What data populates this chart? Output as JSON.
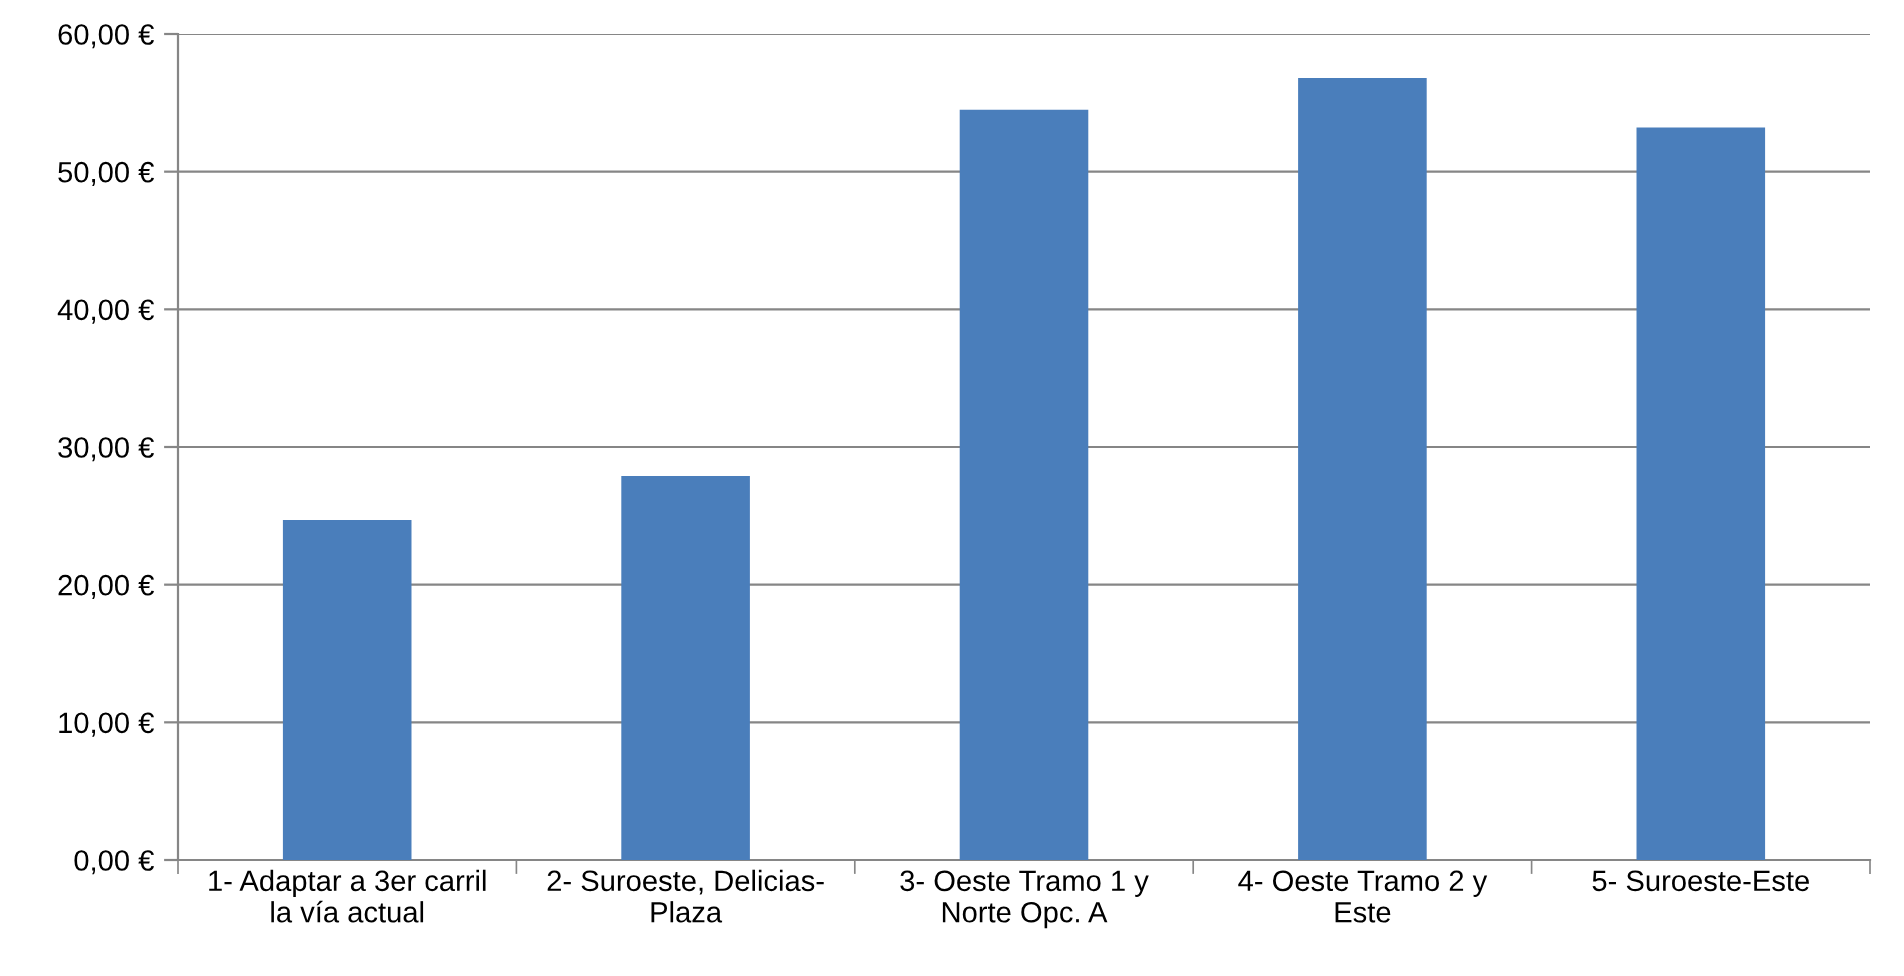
{
  "chart_data": {
    "type": "bar",
    "categories": [
      "1- Adaptar a 3er carril\nla vía actual",
      "2- Suroeste, Delicias-\nPlaza",
      "3- Oeste Tramo 1 y\nNorte Opc. A",
      "4- Oeste Tramo 2 y\nEste",
      "5- Suroeste-Este"
    ],
    "values": [
      24.7,
      27.9,
      54.5,
      56.8,
      53.2
    ],
    "color": "#4a7ebb",
    "ylim": [
      0,
      60
    ],
    "yticks": [
      {
        "value": 0,
        "label": "0,00 €"
      },
      {
        "value": 10,
        "label": "10,00 €"
      },
      {
        "value": 20,
        "label": "20,00 €"
      },
      {
        "value": 30,
        "label": "30,00 €"
      },
      {
        "value": 40,
        "label": "40,00 €"
      },
      {
        "value": 50,
        "label": "50,00 €"
      },
      {
        "value": 60,
        "label": "60,00 €"
      }
    ],
    "grid": "y"
  }
}
